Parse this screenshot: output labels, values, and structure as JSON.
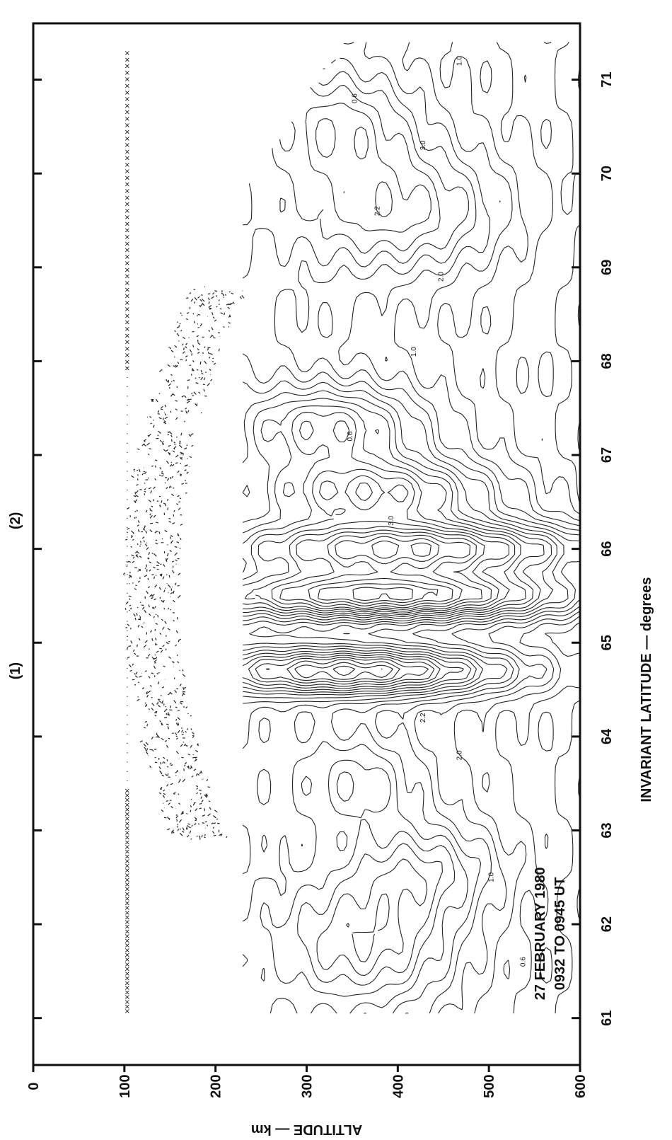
{
  "chart_data": {
    "type": "heatmap",
    "style": "contour",
    "title": "",
    "xlabel": "INVARIANT LATITUDE — degrees",
    "ylabel": "ALTITUDE — km",
    "xlim": [
      60.5,
      71.6
    ],
    "ylim": [
      0,
      600
    ],
    "x_ticks": [
      "61",
      "62",
      "63",
      "64",
      "65",
      "66",
      "67",
      "68",
      "69",
      "70",
      "71"
    ],
    "y_ticks": [
      "0",
      "100",
      "200",
      "300",
      "400",
      "500",
      "600"
    ],
    "annotations": [
      {
        "text": "(1)",
        "x": 64.7
      },
      {
        "text": "(2)",
        "x": 66.3
      }
    ],
    "date_text": "27 FEBRUARY 1980",
    "time_text": "0932 TO 0945 UT",
    "contour_labels": [
      "0.6",
      "1.0",
      "2.0",
      "2.2",
      "3.0"
    ],
    "grid": false,
    "legend": "none"
  }
}
